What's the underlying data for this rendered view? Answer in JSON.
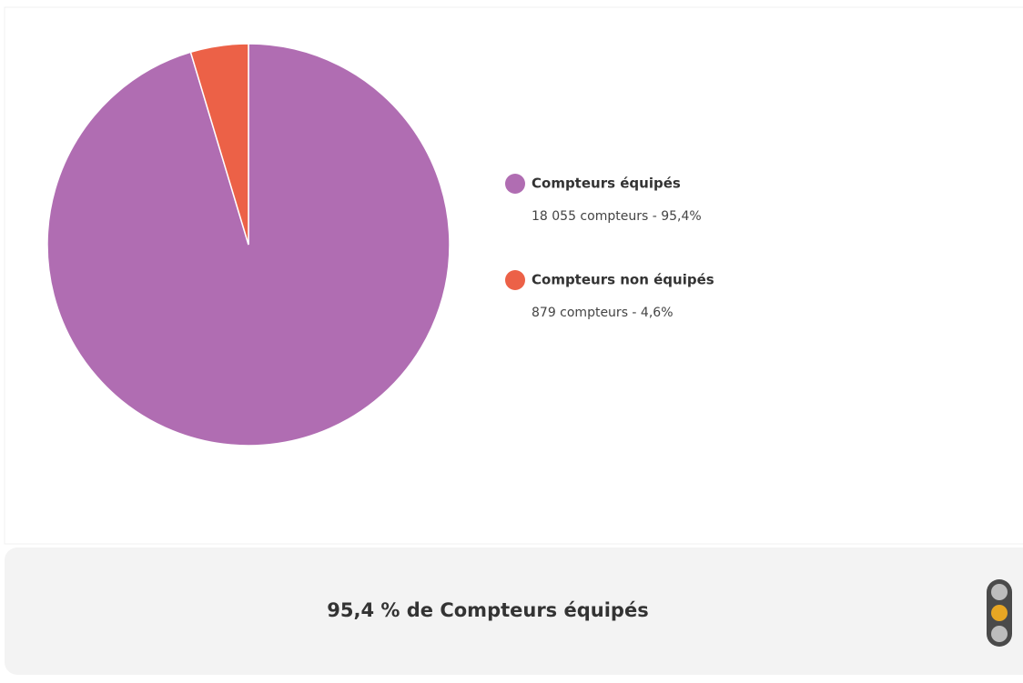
{
  "chart_data": {
    "type": "pie",
    "categories": [
      "Compteurs équipés",
      "Compteurs non équipés"
    ],
    "values": [
      18055,
      879
    ],
    "value_labels": [
      "18 055 compteurs - 95,4%",
      "879 compteurs - 4,6%"
    ],
    "colors": [
      "#b06db2",
      "#ec6147"
    ],
    "summary": "95,4 % de Compteurs équipés"
  }
}
